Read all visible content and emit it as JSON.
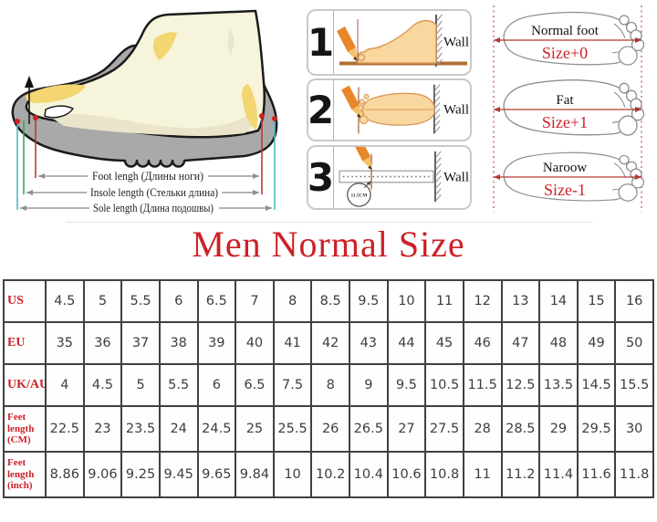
{
  "title": "Men Normal Size",
  "measure_diagram": {
    "foot_length_label": "Foot lengh (Длины ноги)",
    "insole_length_label": "Insole length (Стельки длина)",
    "sole_length_label": "Sole length (Длина подошвы)"
  },
  "steps": [
    {
      "number": "1",
      "wall_label": "Wall"
    },
    {
      "number": "2",
      "wall_label": "Wall"
    },
    {
      "number": "3",
      "wall_label": "Wall",
      "measurement": "11.5CM"
    }
  ],
  "foot_types": [
    {
      "name": "Normal foot",
      "size_note": "Size+0"
    },
    {
      "name": "Fat",
      "size_note": "Size+1"
    },
    {
      "name": "Naroow",
      "size_note": "Size-1"
    }
  ],
  "size_table": {
    "rows": [
      {
        "label": "US",
        "values": [
          "4.5",
          "5",
          "5.5",
          "6",
          "6.5",
          "7",
          "8",
          "8.5",
          "9.5",
          "10",
          "11",
          "12",
          "13",
          "14",
          "15",
          "16"
        ]
      },
      {
        "label": "EU",
        "values": [
          "35",
          "36",
          "37",
          "38",
          "39",
          "40",
          "41",
          "42",
          "43",
          "44",
          "45",
          "46",
          "47",
          "48",
          "49",
          "50"
        ]
      },
      {
        "label": "UK/AU",
        "values": [
          "4",
          "4.5",
          "5",
          "5.5",
          "6",
          "6.5",
          "7.5",
          "8",
          "9",
          "9.5",
          "10.5",
          "11.5",
          "12.5",
          "13.5",
          "14.5",
          "15.5"
        ]
      },
      {
        "label": "Feet length (CM)",
        "values": [
          "22.5",
          "23",
          "23.5",
          "24",
          "24.5",
          "25",
          "25.5",
          "26",
          "26.5",
          "27",
          "27.5",
          "28",
          "28.5",
          "29",
          "29.5",
          "30"
        ]
      },
      {
        "label": "Feet length (inch)",
        "values": [
          "8.86",
          "9.06",
          "9.25",
          "9.45",
          "9.65",
          "9.84",
          "10",
          "10.2",
          "10.4",
          "10.6",
          "10.8",
          "11",
          "11.2",
          "11.4",
          "11.6",
          "11.8"
        ]
      }
    ]
  },
  "colors": {
    "accent_red": "#cc2127",
    "table_border": "#404040",
    "shoe_gray": "#a9a9a9",
    "foot_cream": "#f7f4dc",
    "accent_yellow": "#f3d671",
    "skin_peach": "#fbd7a0",
    "pencil_orange": "#e8872a",
    "floor_brown": "#b06f35"
  }
}
